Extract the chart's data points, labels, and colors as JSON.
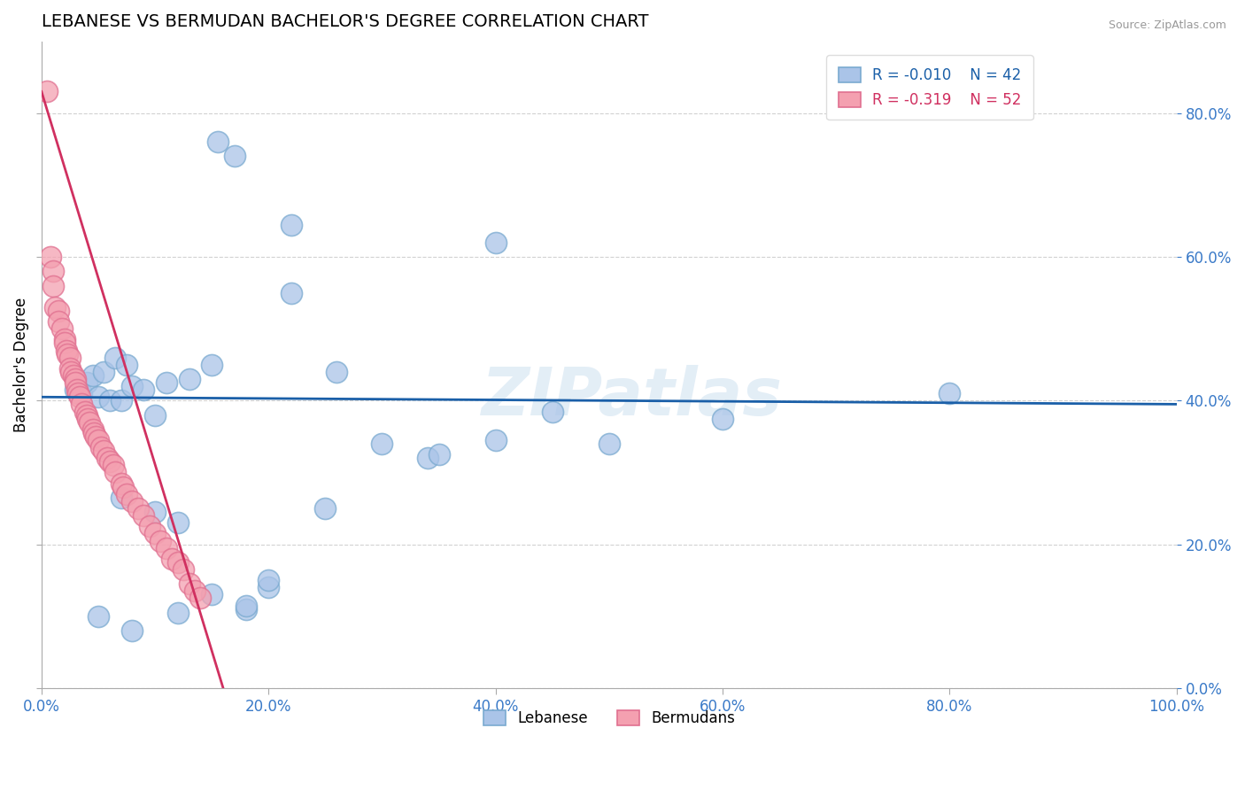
{
  "title": "LEBANESE VS BERMUDAN BACHELOR'S DEGREE CORRELATION CHART",
  "source": "Source: ZipAtlas.com",
  "ylabel": "Bachelor's Degree",
  "ylim": [
    0,
    90
  ],
  "xlim": [
    0,
    100
  ],
  "yticks": [
    0,
    20,
    40,
    60,
    80
  ],
  "xticks": [
    0,
    20,
    40,
    60,
    80,
    100
  ],
  "legend_r_blue": "R = -0.010",
  "legend_n_blue": "N = 42",
  "legend_r_pink": "R = -0.319",
  "legend_n_pink": "N = 52",
  "blue_color": "#aac4e8",
  "pink_color": "#f4a0b0",
  "blue_edge": "#7aaad0",
  "pink_edge": "#e07090",
  "trend_blue_color": "#1a5fa8",
  "trend_pink_color": "#d03060",
  "watermark": "ZIPatlas",
  "blue_trend_x": [
    0,
    100
  ],
  "blue_trend_y": [
    40.5,
    39.5
  ],
  "pink_trend_x": [
    0,
    16
  ],
  "pink_trend_y": [
    83,
    0
  ],
  "blue_x": [
    3.0,
    3.5,
    4.0,
    4.5,
    5.0,
    5.5,
    6.0,
    6.5,
    7.0,
    7.5,
    8.0,
    9.0,
    10.0,
    11.0,
    12.0,
    13.0,
    15.0,
    15.5,
    17.0,
    18.0,
    20.0,
    22.0,
    22.0,
    25.0,
    26.0,
    30.0,
    34.0,
    35.0,
    40.0,
    40.0,
    45.0,
    50.0,
    60.0,
    80.0,
    5.0,
    8.0,
    10.0,
    12.0,
    15.0,
    18.0,
    20.0,
    7.0
  ],
  "blue_y": [
    41.5,
    41.0,
    42.5,
    43.5,
    40.5,
    44.0,
    40.0,
    46.0,
    40.0,
    45.0,
    42.0,
    41.5,
    38.0,
    42.5,
    23.0,
    43.0,
    45.0,
    76.0,
    74.0,
    11.0,
    14.0,
    64.5,
    55.0,
    25.0,
    44.0,
    34.0,
    32.0,
    32.5,
    62.0,
    34.5,
    38.5,
    34.0,
    37.5,
    41.0,
    10.0,
    8.0,
    24.5,
    10.5,
    13.0,
    11.5,
    15.0,
    26.5
  ],
  "pink_x": [
    0.5,
    0.8,
    1.0,
    1.0,
    1.2,
    1.5,
    1.5,
    1.8,
    2.0,
    2.0,
    2.2,
    2.3,
    2.5,
    2.5,
    2.6,
    2.8,
    3.0,
    3.0,
    3.1,
    3.2,
    3.4,
    3.5,
    3.8,
    4.0,
    4.1,
    4.2,
    4.5,
    4.6,
    4.8,
    5.0,
    5.2,
    5.5,
    5.8,
    6.0,
    6.3,
    6.5,
    7.0,
    7.2,
    7.5,
    8.0,
    8.5,
    9.0,
    9.5,
    10.0,
    10.5,
    11.0,
    11.5,
    12.0,
    12.5,
    13.0,
    13.5,
    14.0
  ],
  "pink_y": [
    83.0,
    60.0,
    58.0,
    56.0,
    53.0,
    52.5,
    51.0,
    50.0,
    48.5,
    48.0,
    47.0,
    46.5,
    46.0,
    44.5,
    44.0,
    43.5,
    43.0,
    42.5,
    41.5,
    41.0,
    40.5,
    39.5,
    38.5,
    38.0,
    37.5,
    37.0,
    36.0,
    35.5,
    35.0,
    34.5,
    33.5,
    33.0,
    32.0,
    31.5,
    31.0,
    30.0,
    28.5,
    28.0,
    27.0,
    26.0,
    25.0,
    24.0,
    22.5,
    21.5,
    20.5,
    19.5,
    18.0,
    17.5,
    16.5,
    14.5,
    13.5,
    12.5
  ]
}
